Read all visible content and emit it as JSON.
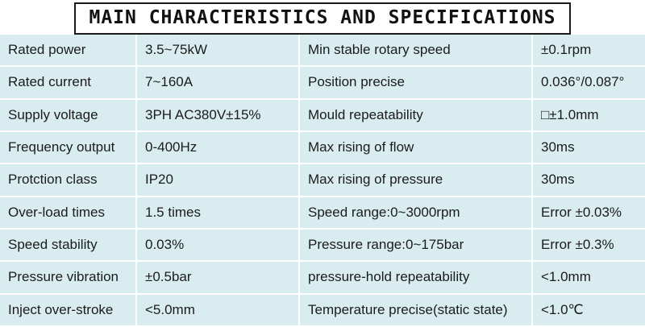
{
  "title": "MAIN CHARACTERISTICS AND SPECIFICATIONS",
  "colors": {
    "row_background": "#d9edf0",
    "separator": "#ffffff",
    "text": "#1b1b1b",
    "title_border": "#1a1a1a"
  },
  "rows": [
    {
      "l_label": "Rated power",
      "l_value": "3.5~75kW",
      "r_label": "Min stable rotary speed",
      "r_value": "±0.1rpm"
    },
    {
      "l_label": "Rated current",
      "l_value": "7~160A",
      "r_label": "Position precise",
      "r_value": "0.036°/0.087°"
    },
    {
      "l_label": "Supply voltage",
      "l_value": "3PH AC380V±15%",
      "r_label": "Mould repeatability",
      "r_value": "□±1.0mm"
    },
    {
      "l_label": "Frequency output",
      "l_value": "0-400Hz",
      "r_label": "Max rising of flow",
      "r_value": "30ms"
    },
    {
      "l_label": "Protction class",
      "l_value": "IP20",
      "r_label": "Max rising of pressure",
      "r_value": "30ms"
    },
    {
      "l_label": "Over-load times",
      "l_value": "1.5 times",
      "r_label": "Speed range:0~3000rpm",
      "r_value": "Error ±0.03%"
    },
    {
      "l_label": "Speed stability",
      "l_value": "0.03%",
      "r_label": "Pressure range:0~175bar",
      "r_value": "Error ±0.3%"
    },
    {
      "l_label": "Pressure vibration",
      "l_value": "±0.5bar",
      "r_label": "pressure-hold repeatability",
      "r_value": "<1.0mm"
    },
    {
      "l_label": "Inject over-stroke",
      "l_value": "<5.0mm",
      "r_label": "Temperature precise(static state)",
      "r_value": "<1.0℃"
    }
  ]
}
